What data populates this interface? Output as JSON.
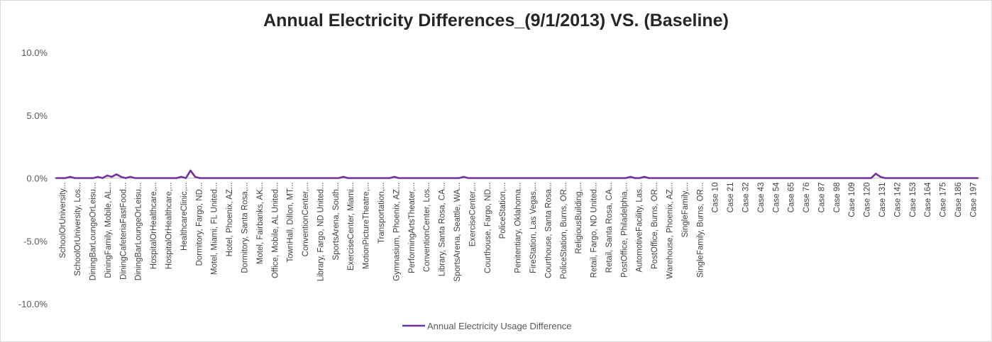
{
  "chart_data": {
    "type": "line",
    "title": "Annual Electricity Differences_(9/1/2013) VS. (Baseline)",
    "xlabel": "",
    "ylabel": "",
    "ylim": [
      -0.1,
      0.1
    ],
    "y_ticks": [
      "10.0%",
      "5.0%",
      "0.0%",
      "-5.0%",
      "-10.0%"
    ],
    "y_tick_values": [
      0.1,
      0.05,
      0.0,
      -0.05,
      -0.1
    ],
    "grid": false,
    "legend_position": "bottom",
    "x_tick_labels": [
      "SchoolOrUniversity...",
      "SchoolOrUniversity, Los...",
      "DiningBarLoungeOrLeisu...",
      "DiningFamily, Mobile, AL...",
      "DiningCafeteriaFastFood...",
      "DiningBarLoungeOrLeisu...",
      "HospitalOrHealthcare,...",
      "HospitalOrHealthcare,...",
      "HealthcareClinic,...",
      "Dormitory, Fargo, ND...",
      "Motel, Miami, FL United...",
      "Hotel, Phoenix, AZ...",
      "Dormitory, Santa Rosa,...",
      "Motel, Fairbanks, AK...",
      "Office, Mobile, AL United...",
      "TownHall, Dillon, MT...",
      "ConventionCenter,...",
      "Library, Fargo, ND United...",
      "SportsArena, South...",
      "ExerciseCenter, Miami...",
      "MotionPictureTheatre,...",
      "Transportation,...",
      "Gymnasium, Phoenix, AZ...",
      "PerformingArtsTheater,...",
      "ConventionCenter, Los...",
      "Library, Santa Rosa, CA...",
      "SportsArena, Seattle, WA...",
      "ExerciseCenter,...",
      "Courthouse, Fargo, ND...",
      "PoliceStation,...",
      "Penitentiary, Oklahoma...",
      "FireStation, Las Vegas,...",
      "Courthouse, Santa Rosa...",
      "PoliceStation, Burns, OR...",
      "ReligiousBuilding,...",
      "Retail, Fargo, ND United...",
      "Retail, Santa Rosa, CA...",
      "PostOffice, Philadelphia,...",
      "AutomotiveFacility, Las...",
      "PostOffice, Burns, OR...",
      "Warehouse, Phoenix, AZ...",
      "SingleFamily,...",
      "SingleFamily, Burns, OR...",
      "Case 10",
      "Case 21",
      "Case 32",
      "Case 43",
      "Case 54",
      "Case 65",
      "Case 76",
      "Case 87",
      "Case 98",
      "Case 109",
      "Case 120",
      "Case 131",
      "Case 142",
      "Case 153",
      "Case 164",
      "Case 175",
      "Case 186",
      "Case 197"
    ],
    "n_points": 200,
    "series": [
      {
        "name": "Annual Electricity Usage Difference",
        "color": "#7030a0",
        "baseline_value": 0.0,
        "nonzero_points": [
          {
            "index": 3,
            "value": 0.001
          },
          {
            "index": 9,
            "value": 0.001
          },
          {
            "index": 11,
            "value": 0.002
          },
          {
            "index": 12,
            "value": 0.001
          },
          {
            "index": 13,
            "value": 0.003
          },
          {
            "index": 14,
            "value": 0.001
          },
          {
            "index": 16,
            "value": 0.001
          },
          {
            "index": 27,
            "value": 0.001
          },
          {
            "index": 29,
            "value": 0.006
          },
          {
            "index": 30,
            "value": 0.001
          },
          {
            "index": 62,
            "value": 0.001
          },
          {
            "index": 73,
            "value": 0.001
          },
          {
            "index": 88,
            "value": 0.001
          },
          {
            "index": 124,
            "value": 0.001
          },
          {
            "index": 127,
            "value": 0.001
          },
          {
            "index": 177,
            "value": 0.0035
          },
          {
            "index": 178,
            "value": 0.001
          }
        ]
      }
    ]
  }
}
